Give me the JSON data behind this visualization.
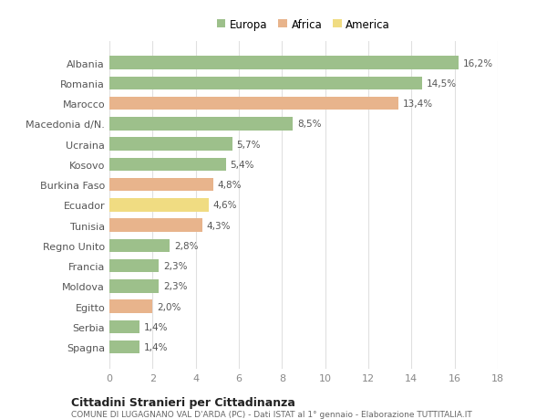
{
  "categories": [
    "Albania",
    "Romania",
    "Marocco",
    "Macedonia d/N.",
    "Ucraina",
    "Kosovo",
    "Burkina Faso",
    "Ecuador",
    "Tunisia",
    "Regno Unito",
    "Francia",
    "Moldova",
    "Egitto",
    "Serbia",
    "Spagna"
  ],
  "values": [
    16.2,
    14.5,
    13.4,
    8.5,
    5.7,
    5.4,
    4.8,
    4.6,
    4.3,
    2.8,
    2.3,
    2.3,
    2.0,
    1.4,
    1.4
  ],
  "labels": [
    "16,2%",
    "14,5%",
    "13,4%",
    "8,5%",
    "5,7%",
    "5,4%",
    "4,8%",
    "4,6%",
    "4,3%",
    "2,8%",
    "2,3%",
    "2,3%",
    "2,0%",
    "1,4%",
    "1,4%"
  ],
  "continents": [
    "Europa",
    "Europa",
    "Africa",
    "Europa",
    "Europa",
    "Europa",
    "Africa",
    "America",
    "Africa",
    "Europa",
    "Europa",
    "Europa",
    "Africa",
    "Europa",
    "Europa"
  ],
  "colors": {
    "Europa": "#9dc08b",
    "Africa": "#e8b48c",
    "America": "#f0dc82"
  },
  "legend_labels": [
    "Europa",
    "Africa",
    "America"
  ],
  "legend_colors": [
    "#9dc08b",
    "#e8b48c",
    "#f0dc82"
  ],
  "xlim": [
    0,
    18
  ],
  "xticks": [
    0,
    2,
    4,
    6,
    8,
    10,
    12,
    14,
    16,
    18
  ],
  "title": "Cittadini Stranieri per Cittadinanza",
  "subtitle": "COMUNE DI LUGAGNANO VAL D'ARDA (PC) - Dati ISTAT al 1° gennaio - Elaborazione TUTTITALIA.IT",
  "background_color": "#ffffff",
  "grid_color": "#e0e0e0",
  "bar_height": 0.65
}
